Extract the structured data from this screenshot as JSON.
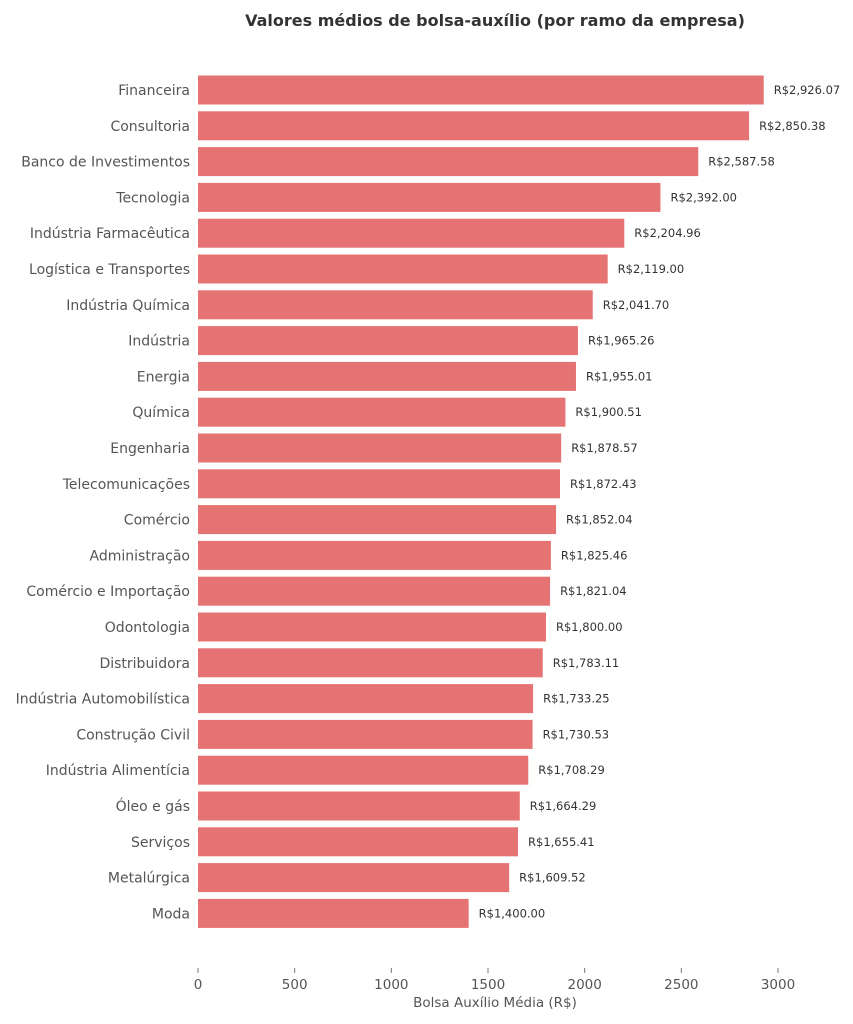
{
  "chart_data": {
    "type": "bar",
    "orientation": "horizontal",
    "title": "Valores médios de bolsa-auxílio (por ramo da empresa)",
    "xlabel": "Bolsa Auxílio Média (R$)",
    "ylabel": "",
    "xlim": [
      0,
      3000
    ],
    "xticks": [
      "0",
      "500",
      "1000",
      "1500",
      "2000",
      "2500",
      "3000"
    ],
    "grid": false,
    "bar_color": "#e57373",
    "categories": [
      "Financeira",
      "Consultoria",
      "Banco de Investimentos",
      "Tecnologia",
      "Indústria Farmacêutica",
      "Logística e Transportes",
      "Indústria Química",
      "Indústria",
      "Energia",
      "Química",
      "Engenharia",
      "Telecomunicações",
      "Comércio",
      "Administração",
      "Comércio e Importação",
      "Odontologia",
      "Distribuidora",
      "Indústria Automobilística",
      "Construção Civil",
      "Indústria Alimentícia",
      "Óleo e gás",
      "Serviços",
      "Metalúrgica",
      "Moda"
    ],
    "values": [
      2926.07,
      2850.38,
      2587.58,
      2392.0,
      2204.96,
      2119.0,
      2041.7,
      1965.26,
      1955.01,
      1900.51,
      1878.57,
      1872.43,
      1852.04,
      1825.46,
      1821.04,
      1800.0,
      1783.11,
      1733.25,
      1730.53,
      1708.29,
      1664.29,
      1655.41,
      1609.52,
      1400.0
    ],
    "labels": [
      "R$2,926.07",
      "R$2,850.38",
      "R$2,587.58",
      "R$2,392.00",
      "R$2,204.96",
      "R$2,119.00",
      "R$2,041.70",
      "R$1,965.26",
      "R$1,955.01",
      "R$1,900.51",
      "R$1,878.57",
      "R$1,872.43",
      "R$1,852.04",
      "R$1,825.46",
      "R$1,821.04",
      "R$1,800.00",
      "R$1,783.11",
      "R$1,733.25",
      "R$1,730.53",
      "R$1,708.29",
      "R$1,664.29",
      "R$1,655.41",
      "R$1,609.52",
      "R$1,400.00"
    ]
  }
}
